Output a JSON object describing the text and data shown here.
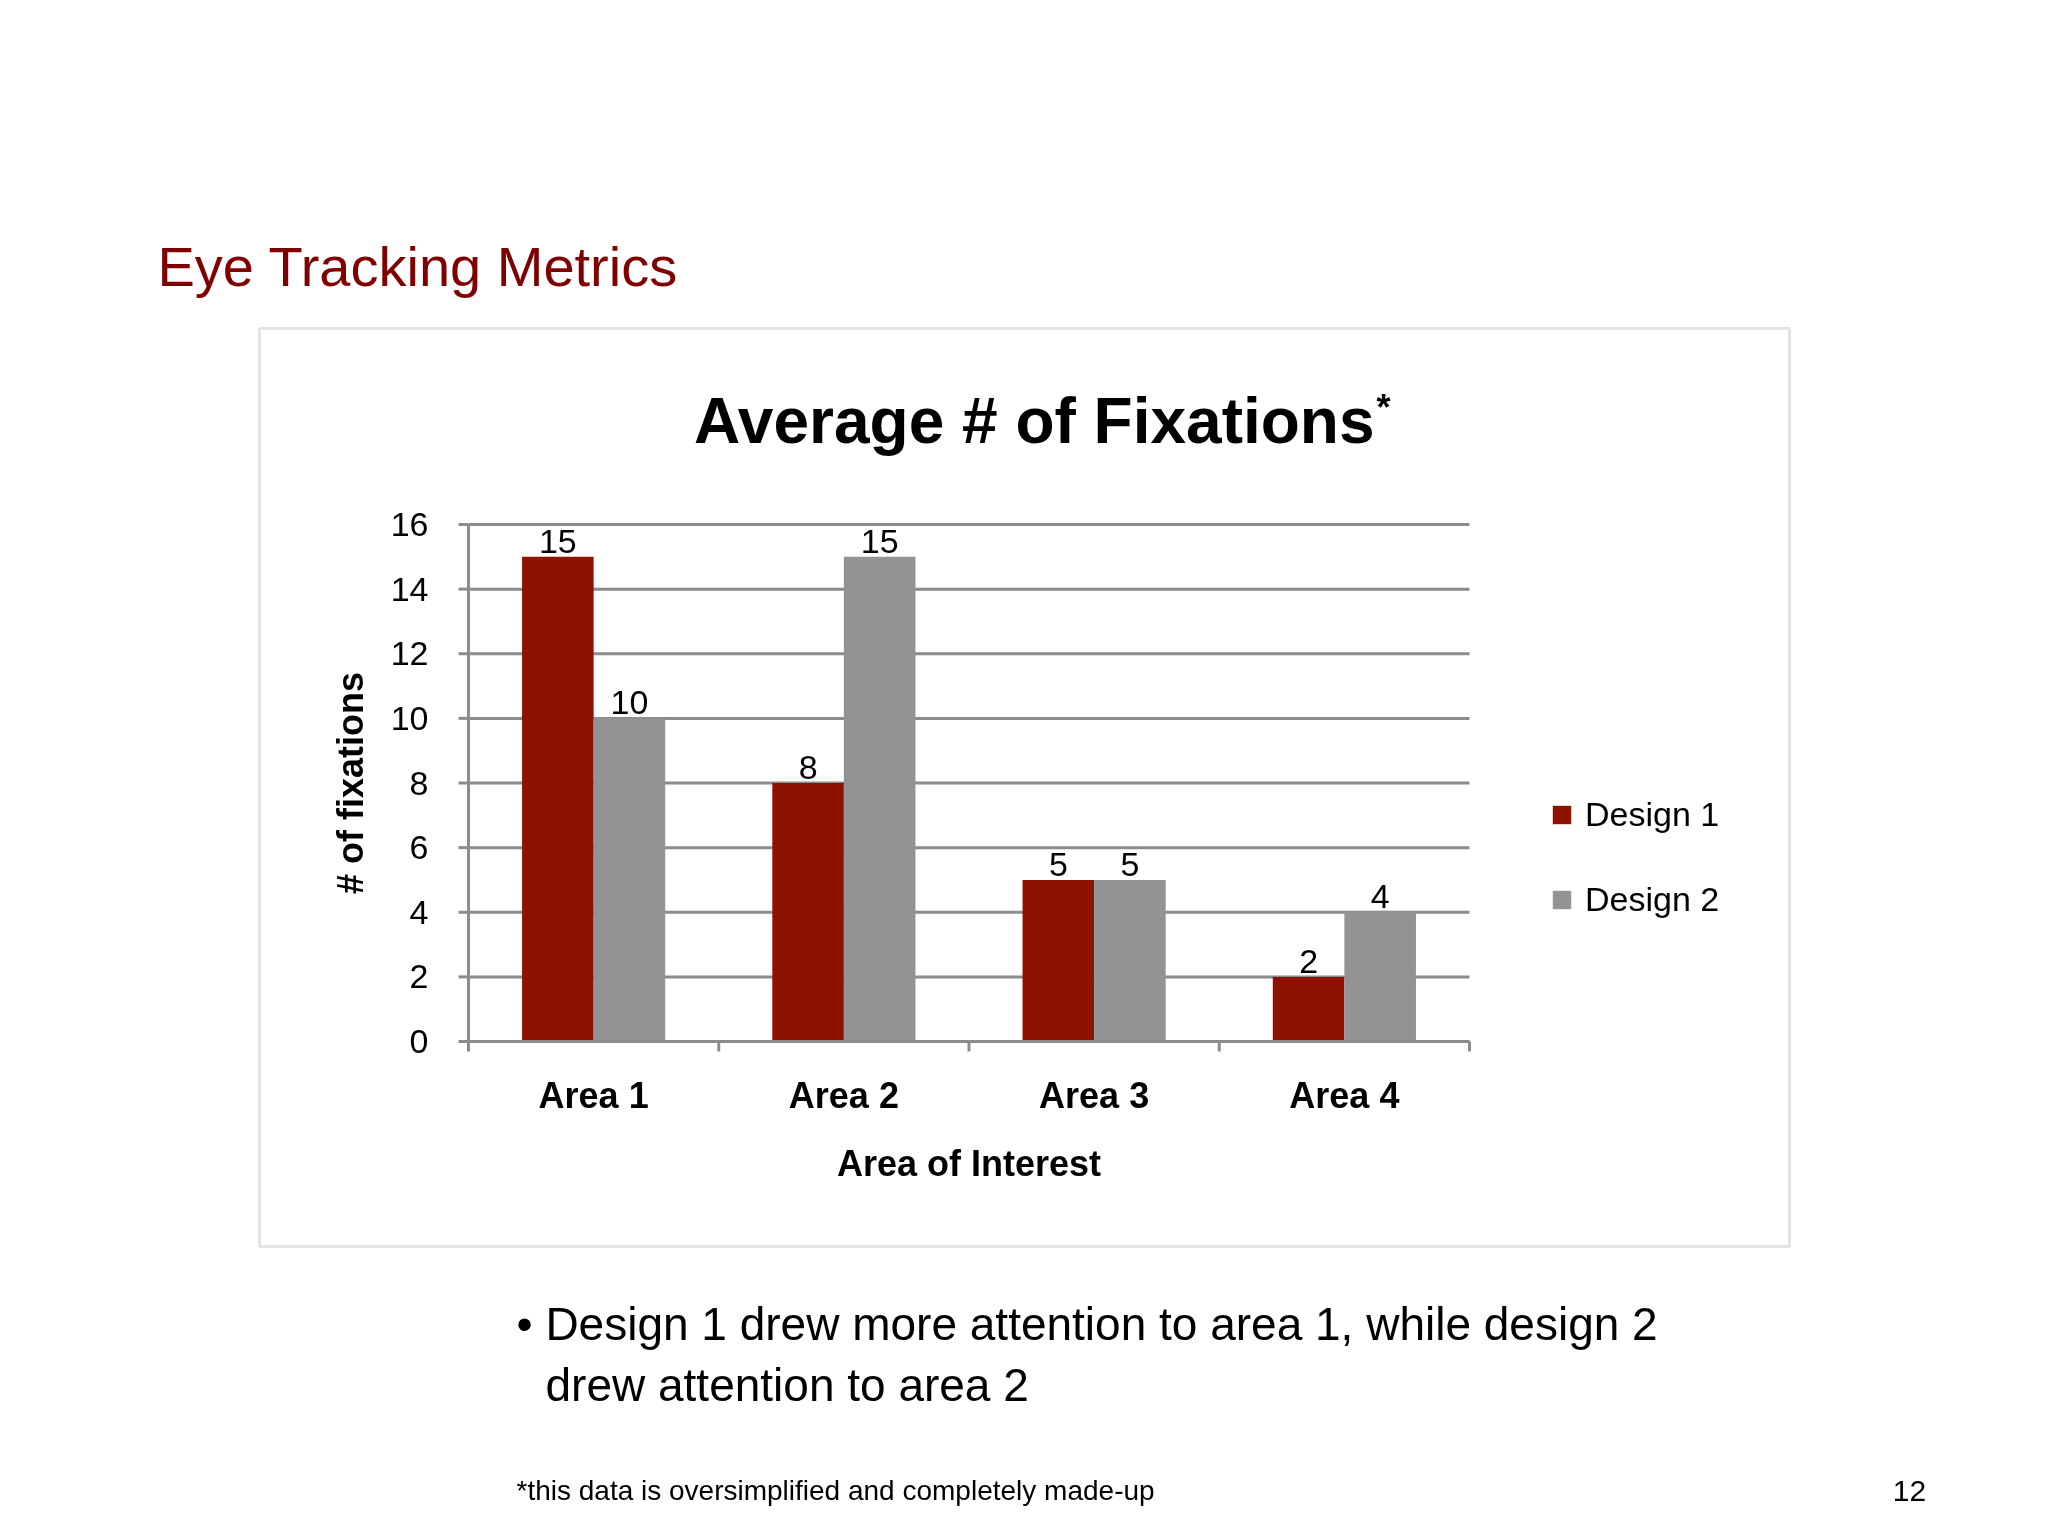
{
  "chart_data": {
    "type": "bar",
    "title": "Average # of Fixations$^{*}$",
    "xlabel": "Area of Interest",
    "ylabel": "# of fixations",
    "categories": [
      "Area 1",
      "Area 2",
      "Area 3",
      "Area 4"
    ],
    "series": [
      {
        "name": "Design 1",
        "color": "#8e1200",
        "values": [
          15,
          8,
          5,
          2
        ]
      },
      {
        "name": "Design 2",
        "color": "#939295",
        "values": [
          10,
          15,
          5,
          4
        ]
      }
    ],
    "ylim": [
      0,
      16
    ],
    "yticks": [
      0,
      2,
      4,
      6,
      8,
      10,
      12,
      14,
      16
    ],
    "grid": "y",
    "legend": "right",
    "data_labels": true,
    "annotations": [
      "Eye Tracking Metrics",
      "• Design 1 drew more attention to area 1, while design 2 drew attention to area 2",
      "*this data is oversimplified and completely made-up",
      "12"
    ]
  }
}
